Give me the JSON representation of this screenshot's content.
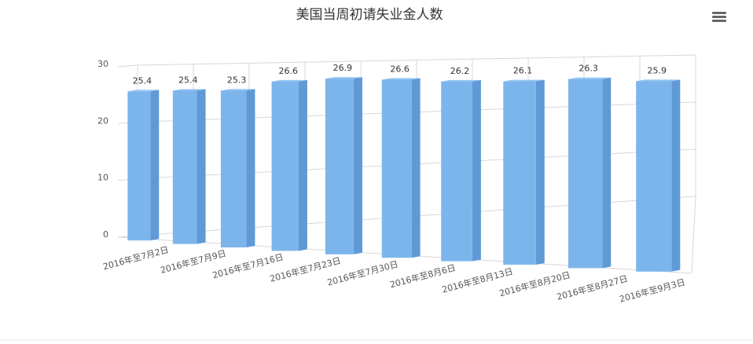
{
  "chart_data": {
    "type": "bar3d",
    "title": "美国当周初请失业金人数",
    "categories": [
      "2016年至7月2日",
      "2016年至7月9日",
      "2016年至7月16日",
      "2016年至7月23日",
      "2016年至7月30日",
      "2016年至8月6日",
      "2016年至8月13日",
      "2016年至8月20日",
      "2016年至8月27日",
      "2016年至9月3日"
    ],
    "values": [
      25.4,
      25.4,
      25.3,
      26.6,
      26.9,
      26.6,
      26.2,
      26.1,
      26.3,
      25.9
    ],
    "color": "#7cb5ec",
    "ylim": [
      0,
      30
    ],
    "yticks": [
      0,
      10,
      20,
      30
    ],
    "grid": true
  }
}
